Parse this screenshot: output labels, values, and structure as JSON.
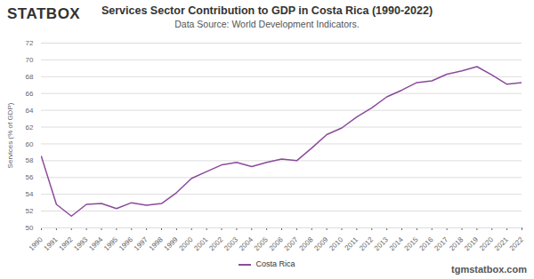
{
  "chart_data": {
    "type": "line",
    "title": "Services Sector Contribution to GDP in Costa Rica (1990-2022)",
    "subtitle": "Data Source: World Development Indicators.",
    "logo": "STATBOX",
    "credit": "tgmstatbox.com",
    "y_label": "Services (% of GDP)",
    "x": [
      1990,
      1991,
      1992,
      1993,
      1994,
      1995,
      1996,
      1997,
      1998,
      1999,
      2000,
      2001,
      2002,
      2003,
      2004,
      2005,
      2006,
      2007,
      2008,
      2009,
      2010,
      2011,
      2012,
      2013,
      2014,
      2015,
      2016,
      2017,
      2018,
      2019,
      2020,
      2021,
      2022
    ],
    "series": [
      {
        "name": "Costa Rica",
        "color": "#8b4a9c",
        "values": [
          58.5,
          52.8,
          51.4,
          52.8,
          52.9,
          52.3,
          53.0,
          52.7,
          52.9,
          54.2,
          55.9,
          56.7,
          57.5,
          57.8,
          57.3,
          57.8,
          58.2,
          58.0,
          59.5,
          61.1,
          61.9,
          63.2,
          64.3,
          65.6,
          66.4,
          67.3,
          67.5,
          68.3,
          68.7,
          69.2,
          68.2,
          67.1,
          67.3
        ]
      }
    ],
    "xlim": [
      1990,
      2022
    ],
    "xticks": [
      1990,
      1991,
      1992,
      1993,
      1994,
      1995,
      1996,
      1997,
      1998,
      1999,
      2000,
      2001,
      2002,
      2003,
      2004,
      2005,
      2006,
      2007,
      2008,
      2009,
      2010,
      2011,
      2012,
      2013,
      2014,
      2015,
      2016,
      2017,
      2018,
      2019,
      2020,
      2021,
      2022
    ],
    "ylim": [
      50,
      72
    ],
    "yticks": [
      50,
      52,
      54,
      56,
      58,
      60,
      62,
      64,
      66,
      68,
      70,
      72
    ],
    "grid": true,
    "legend": "bottom"
  }
}
